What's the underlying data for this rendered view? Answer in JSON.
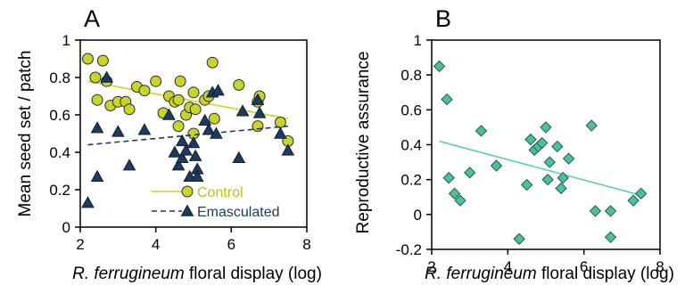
{
  "chart_data": [
    {
      "panel": "A",
      "type": "scatter",
      "xlabel_italic": "R. ferrugineum",
      "xlabel_rest": " floral display (log)",
      "ylabel": "Mean seed set / patch",
      "xlim": [
        2,
        8
      ],
      "ylim": [
        0,
        1
      ],
      "xticks": [
        2,
        4,
        6,
        8
      ],
      "yticks": [
        0,
        0.2,
        0.4,
        0.6,
        0.8,
        1
      ],
      "ytick_labels": [
        "0",
        "0.2",
        "0.4",
        "0.6",
        "0.8",
        "1"
      ],
      "grid": false,
      "legend_position": "bottom-right",
      "series": [
        {
          "name": "Control",
          "marker": "circle",
          "color": "#c8d42c",
          "line_color": "#c8d42c",
          "line_style": "solid",
          "fit": [
            [
              2.2,
              0.78
            ],
            [
              7.5,
              0.58
            ]
          ],
          "points": [
            [
              2.2,
              0.9
            ],
            [
              2.4,
              0.8
            ],
            [
              2.45,
              0.68
            ],
            [
              2.6,
              0.89
            ],
            [
              2.7,
              0.78
            ],
            [
              2.8,
              0.65
            ],
            [
              3.0,
              0.67
            ],
            [
              3.2,
              0.67
            ],
            [
              3.3,
              0.63
            ],
            [
              3.5,
              0.75
            ],
            [
              3.7,
              0.73
            ],
            [
              4.0,
              0.78
            ],
            [
              4.2,
              0.61
            ],
            [
              4.35,
              0.7
            ],
            [
              4.5,
              0.67
            ],
            [
              4.6,
              0.54
            ],
            [
              4.6,
              0.68
            ],
            [
              4.65,
              0.78
            ],
            [
              4.8,
              0.6
            ],
            [
              4.9,
              0.64
            ],
            [
              5.0,
              0.72
            ],
            [
              5.0,
              0.5
            ],
            [
              5.05,
              0.63
            ],
            [
              5.3,
              0.68
            ],
            [
              5.4,
              0.7
            ],
            [
              5.5,
              0.88
            ],
            [
              5.55,
              0.58
            ],
            [
              6.2,
              0.76
            ],
            [
              6.7,
              0.67
            ],
            [
              6.7,
              0.54
            ],
            [
              6.75,
              0.7
            ],
            [
              7.3,
              0.56
            ],
            [
              7.5,
              0.46
            ]
          ]
        },
        {
          "name": "Emasculated",
          "marker": "triangle",
          "color": "#1f3a5a",
          "line_color": "#1f3a5a",
          "line_style": "dashed",
          "fit": [
            [
              2.2,
              0.44
            ],
            [
              7.5,
              0.54
            ]
          ],
          "points": [
            [
              2.2,
              0.13
            ],
            [
              2.45,
              0.27
            ],
            [
              2.45,
              0.53
            ],
            [
              2.7,
              0.8
            ],
            [
              3.0,
              0.51
            ],
            [
              3.3,
              0.33
            ],
            [
              3.7,
              0.52
            ],
            [
              4.35,
              0.6
            ],
            [
              4.5,
              0.4
            ],
            [
              4.6,
              0.33
            ],
            [
              4.7,
              0.46
            ],
            [
              4.7,
              0.37
            ],
            [
              4.8,
              0.41
            ],
            [
              4.9,
              0.27
            ],
            [
              5.0,
              0.45
            ],
            [
              5.05,
              0.38
            ],
            [
              5.1,
              0.31
            ],
            [
              5.3,
              0.57
            ],
            [
              5.4,
              0.52
            ],
            [
              5.5,
              0.72
            ],
            [
              5.65,
              0.73
            ],
            [
              5.6,
              0.5
            ],
            [
              5.1,
              0.27
            ],
            [
              6.2,
              0.37
            ],
            [
              6.3,
              0.62
            ],
            [
              6.7,
              0.68
            ],
            [
              6.75,
              0.61
            ],
            [
              7.3,
              0.5
            ],
            [
              7.5,
              0.41
            ]
          ]
        }
      ]
    },
    {
      "panel": "B",
      "type": "scatter",
      "xlabel_italic": "R. ferrugineum",
      "xlabel_rest": " floral display (log)",
      "ylabel": "Reproductive assurance",
      "xlim": [
        2,
        8
      ],
      "ylim": [
        -0.2,
        1
      ],
      "xticks": [
        2,
        4,
        6,
        8
      ],
      "yticks": [
        -0.2,
        0,
        0.2,
        0.4,
        0.6,
        0.8,
        1
      ],
      "ytick_labels": [
        "-0.2",
        "0",
        "0.2",
        "0.4",
        "0.6",
        "0.8",
        "1"
      ],
      "grid": false,
      "series": [
        {
          "marker": "diamond",
          "color": "#4dbfa0",
          "line_color": "#5ecfb0",
          "line_style": "solid",
          "fit": [
            [
              2.2,
              0.42
            ],
            [
              7.5,
              0.11
            ]
          ],
          "points": [
            [
              2.2,
              0.85
            ],
            [
              2.4,
              0.66
            ],
            [
              2.45,
              0.21
            ],
            [
              2.6,
              0.12
            ],
            [
              2.75,
              0.08
            ],
            [
              3.0,
              0.24
            ],
            [
              3.3,
              0.48
            ],
            [
              3.7,
              0.28
            ],
            [
              4.3,
              -0.14
            ],
            [
              4.5,
              0.17
            ],
            [
              4.6,
              0.43
            ],
            [
              4.7,
              0.37
            ],
            [
              4.8,
              0.39
            ],
            [
              4.9,
              0.41
            ],
            [
              5.0,
              0.5
            ],
            [
              5.05,
              0.2
            ],
            [
              5.1,
              0.3
            ],
            [
              5.3,
              0.39
            ],
            [
              5.4,
              0.15
            ],
            [
              5.45,
              0.21
            ],
            [
              5.6,
              0.32
            ],
            [
              6.2,
              0.51
            ],
            [
              6.3,
              0.02
            ],
            [
              6.7,
              0.02
            ],
            [
              6.7,
              -0.13
            ],
            [
              7.3,
              0.08
            ],
            [
              7.5,
              0.12
            ]
          ]
        }
      ]
    }
  ]
}
